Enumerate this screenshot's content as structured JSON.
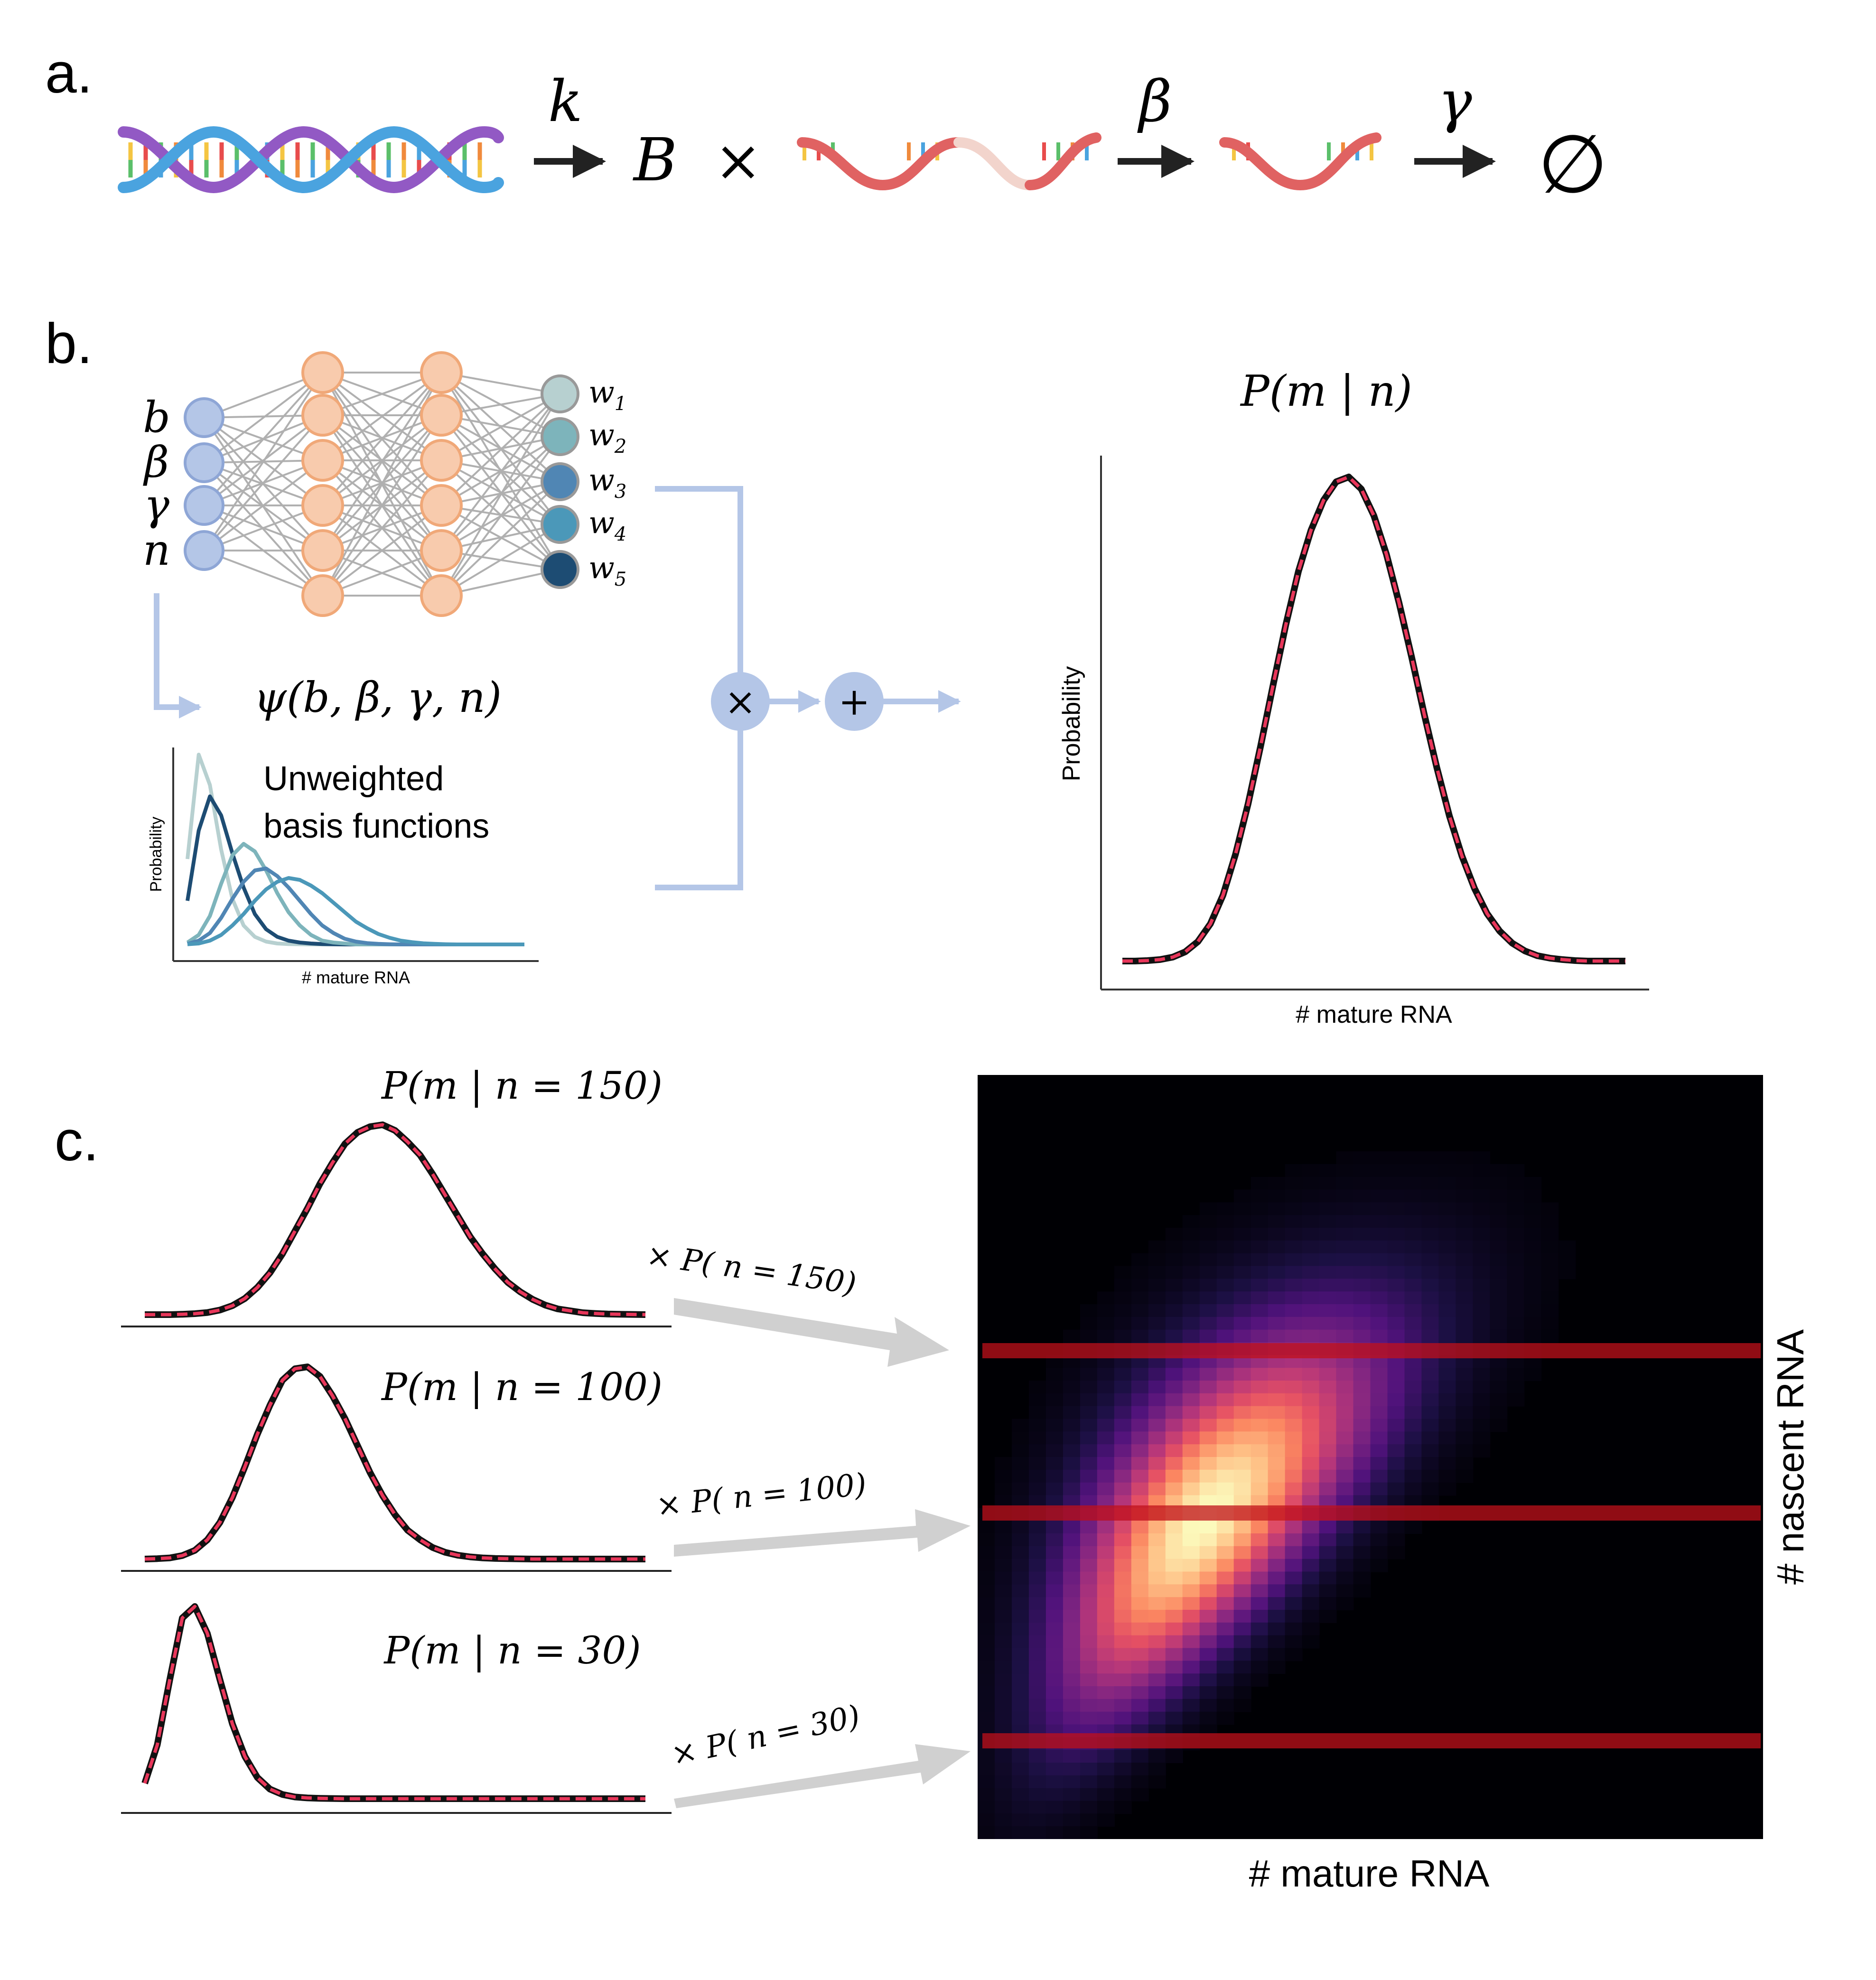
{
  "panel_labels": {
    "a": "a.",
    "b": "b.",
    "c": "c."
  },
  "reaction": {
    "rate_k": "k",
    "burst": "B",
    "times": "×",
    "rate_beta": "β",
    "rate_gamma": "γ",
    "empty_set": "∅"
  },
  "network": {
    "inputs": [
      "b",
      "β",
      "γ",
      "n"
    ],
    "outputs": [
      {
        "base": "w",
        "sub": "1",
        "color": "#b7d0d0"
      },
      {
        "base": "w",
        "sub": "2",
        "color": "#7db4bb"
      },
      {
        "base": "w",
        "sub": "3",
        "color": "#5086b4"
      },
      {
        "base": "w",
        "sub": "4",
        "color": "#4b98b9"
      },
      {
        "base": "w",
        "sub": "5",
        "color": "#1d4c73"
      }
    ],
    "input_color": "#b4c6e7",
    "hidden_color": "#f8cbad",
    "psi_label": "ψ(b, β, γ, n)",
    "times_symbol": "×",
    "plus_symbol": "+"
  },
  "basis_plot": {
    "title_line1": "Unweighted",
    "title_line2": "basis functions",
    "ylabel": "Probability",
    "xlabel": "# mature RNA"
  },
  "output_plot": {
    "title": "P(m | n)",
    "ylabel": "Probability",
    "xlabel": "# mature RNA"
  },
  "conditionals": [
    {
      "title": "P(m | n = 150)",
      "factor": "× P( n = 150)"
    },
    {
      "title": "P(m | n = 100)",
      "factor": "× P( n = 100)"
    },
    {
      "title": "P(m | n = 30)",
      "factor": "× P( n = 30)"
    }
  ],
  "heatmap": {
    "xlabel": "# mature RNA",
    "ylabel": "# nascent RNA"
  },
  "chart_data": [
    {
      "type": "line",
      "title": "",
      "xlabel": "# mature RNA",
      "ylabel": "Probability",
      "x": [
        0,
        1,
        2,
        3,
        4,
        5,
        6,
        7,
        8,
        9,
        10,
        11,
        12,
        13,
        14,
        15,
        16,
        17,
        18,
        19,
        20,
        21,
        22,
        23,
        24,
        25,
        26,
        27,
        28,
        29,
        30
      ],
      "series": [
        {
          "color": "#b7d0d0",
          "values": [
            0.45,
            1.0,
            0.84,
            0.5,
            0.24,
            0.1,
            0.04,
            0.015,
            0.005,
            0.002,
            0.001,
            0,
            0,
            0,
            0,
            0,
            0,
            0,
            0,
            0,
            0,
            0,
            0,
            0,
            0,
            0,
            0,
            0,
            0,
            0,
            0
          ]
        },
        {
          "color": "#1d4c73",
          "values": [
            0.23,
            0.6,
            0.78,
            0.68,
            0.48,
            0.3,
            0.16,
            0.08,
            0.04,
            0.02,
            0.01,
            0.005,
            0.002,
            0.001,
            0,
            0,
            0,
            0,
            0,
            0,
            0,
            0,
            0,
            0,
            0,
            0,
            0,
            0,
            0,
            0,
            0
          ]
        },
        {
          "color": "#7db4bb",
          "values": [
            0.01,
            0.05,
            0.15,
            0.32,
            0.47,
            0.53,
            0.49,
            0.39,
            0.27,
            0.17,
            0.1,
            0.05,
            0.02,
            0.01,
            0.005,
            0,
            0,
            0,
            0,
            0,
            0,
            0,
            0,
            0,
            0,
            0,
            0,
            0,
            0,
            0,
            0
          ]
        },
        {
          "color": "#5086b4",
          "values": [
            0.003,
            0.02,
            0.06,
            0.14,
            0.24,
            0.33,
            0.39,
            0.4,
            0.36,
            0.3,
            0.23,
            0.16,
            0.1,
            0.06,
            0.03,
            0.015,
            0.007,
            0.003,
            0.001,
            0,
            0,
            0,
            0,
            0,
            0,
            0,
            0,
            0,
            0,
            0,
            0
          ]
        },
        {
          "color": "#4b98b9",
          "values": [
            0.001,
            0.005,
            0.02,
            0.05,
            0.1,
            0.16,
            0.23,
            0.29,
            0.33,
            0.35,
            0.34,
            0.31,
            0.27,
            0.22,
            0.17,
            0.12,
            0.085,
            0.055,
            0.035,
            0.02,
            0.012,
            0.006,
            0.003,
            0.001,
            0,
            0,
            0,
            0,
            0,
            0,
            0
          ]
        }
      ]
    },
    {
      "type": "line",
      "title": "P(m | n)",
      "xlabel": "# mature RNA",
      "ylabel": "Probability",
      "x": [
        0,
        1,
        2,
        3,
        4,
        5,
        6,
        7,
        8,
        9,
        10,
        11,
        12,
        13,
        14,
        15,
        16,
        17,
        18,
        19,
        20,
        21,
        22,
        23,
        24,
        25,
        26,
        27,
        28,
        29,
        30,
        31,
        32,
        33,
        34,
        35,
        36,
        37,
        38,
        39,
        40
      ],
      "series": [
        {
          "values": [
            0,
            0,
            0.001,
            0.003,
            0.008,
            0.019,
            0.04,
            0.077,
            0.136,
            0.221,
            0.325,
            0.445,
            0.572,
            0.695,
            0.805,
            0.89,
            0.952,
            0.99,
            1.0,
            0.975,
            0.92,
            0.84,
            0.74,
            0.628,
            0.51,
            0.4,
            0.3,
            0.217,
            0.15,
            0.098,
            0.062,
            0.037,
            0.021,
            0.011,
            0.006,
            0.003,
            0.001,
            0,
            0,
            0,
            0
          ]
        }
      ]
    },
    {
      "type": "line",
      "title": "P(m | n = 150)",
      "x": [
        0,
        1,
        2,
        3,
        4,
        5,
        6,
        7,
        8,
        9,
        10,
        11,
        12,
        13,
        14,
        15,
        16,
        17,
        18,
        19,
        20,
        21,
        22,
        23,
        24,
        25,
        26,
        27,
        28,
        29,
        30,
        31,
        32,
        33,
        34,
        35,
        36,
        37,
        38,
        39,
        40
      ],
      "series": [
        {
          "values": [
            0,
            0,
            0,
            0.002,
            0.005,
            0.011,
            0.024,
            0.047,
            0.085,
            0.143,
            0.22,
            0.32,
            0.44,
            0.56,
            0.69,
            0.8,
            0.9,
            0.96,
            0.99,
            1.0,
            0.97,
            0.91,
            0.84,
            0.74,
            0.63,
            0.52,
            0.41,
            0.32,
            0.24,
            0.17,
            0.12,
            0.08,
            0.05,
            0.03,
            0.02,
            0.01,
            0.006,
            0.003,
            0.002,
            0.001,
            0
          ]
        }
      ]
    },
    {
      "type": "line",
      "title": "P(m | n = 100)",
      "x": [
        0,
        1,
        2,
        3,
        4,
        5,
        6,
        7,
        8,
        9,
        10,
        11,
        12,
        13,
        14,
        15,
        16,
        17,
        18,
        19,
        20,
        21,
        22,
        23,
        24,
        25,
        26,
        27,
        28,
        29,
        30,
        31,
        32,
        33,
        34,
        35,
        36,
        37,
        38,
        39,
        40
      ],
      "series": [
        {
          "values": [
            0,
            0.002,
            0.006,
            0.018,
            0.045,
            0.1,
            0.19,
            0.32,
            0.48,
            0.65,
            0.8,
            0.93,
            0.99,
            1.0,
            0.95,
            0.85,
            0.73,
            0.59,
            0.45,
            0.33,
            0.23,
            0.15,
            0.1,
            0.06,
            0.035,
            0.02,
            0.011,
            0.006,
            0.003,
            0.002,
            0.001,
            0,
            0,
            0,
            0,
            0,
            0,
            0,
            0,
            0,
            0
          ]
        }
      ]
    },
    {
      "type": "line",
      "title": "P(m | n = 30)",
      "x": [
        0,
        1,
        2,
        3,
        4,
        5,
        6,
        7,
        8,
        9,
        10,
        11,
        12,
        13,
        14,
        15,
        16,
        17,
        18,
        19,
        20,
        21,
        22,
        23,
        24,
        25,
        26,
        27,
        28,
        29,
        30,
        31,
        32,
        33,
        34,
        35,
        36,
        37,
        38,
        39,
        40
      ],
      "series": [
        {
          "values": [
            0.08,
            0.28,
            0.62,
            0.94,
            1.0,
            0.86,
            0.62,
            0.39,
            0.22,
            0.11,
            0.05,
            0.022,
            0.009,
            0.004,
            0.002,
            0.001,
            0,
            0,
            0,
            0,
            0,
            0,
            0,
            0,
            0,
            0,
            0,
            0,
            0,
            0,
            0,
            0,
            0,
            0,
            0,
            0,
            0,
            0,
            0,
            0,
            0
          ]
        }
      ]
    },
    {
      "type": "heatmap",
      "xlabel": "# mature RNA",
      "ylabel": "# nascent RNA",
      "highlighted_rows": [
        "n = 150",
        "n = 100",
        "n = 30"
      ]
    }
  ]
}
